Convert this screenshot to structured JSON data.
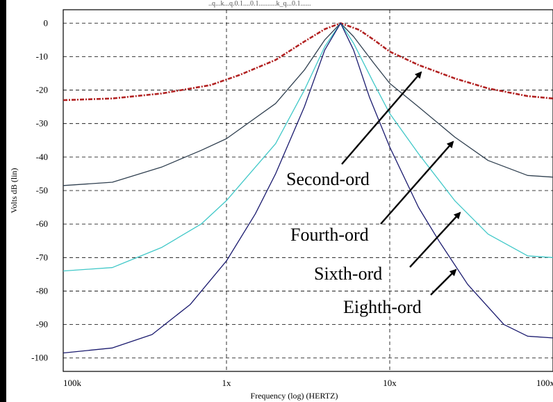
{
  "window": {
    "top_strip_text": "..q...k...q.0.1....0.1..........k_q...0.1......",
    "left_border_color": "#000000"
  },
  "chart_data": {
    "type": "line",
    "title": "",
    "xlabel": "Frequency (log) (HERTZ)",
    "ylabel": "Volts dB (lin)",
    "x_scale": "log",
    "x_ticks": [
      {
        "value": 100000,
        "label": "100k"
      },
      {
        "value": 1000000,
        "label": "1x"
      },
      {
        "value": 10000000,
        "label": "10x"
      },
      {
        "value": 100000000,
        "label": "100x"
      }
    ],
    "xlim": [
      100000,
      100000000
    ],
    "y_ticks": [
      0,
      -10,
      -20,
      -30,
      -40,
      -50,
      -60,
      -70,
      -80,
      -90,
      -100
    ],
    "ylim": [
      -104,
      4
    ],
    "grid": true,
    "grid_style": "dashed",
    "series": [
      {
        "name": "Second-ord",
        "color": "#b22222",
        "style": "dashdot",
        "points": [
          [
            100000,
            -23
          ],
          [
            200000,
            -22.5
          ],
          [
            400000,
            -21
          ],
          [
            800000,
            -18.5
          ],
          [
            1200000,
            -15.5
          ],
          [
            2000000,
            -11
          ],
          [
            3000000,
            -5.5
          ],
          [
            4000000,
            -1.8
          ],
          [
            5000000,
            0
          ],
          [
            6500000,
            -2
          ],
          [
            8000000,
            -5
          ],
          [
            10000000,
            -8.5
          ],
          [
            15000000,
            -12.5
          ],
          [
            25000000,
            -16.5
          ],
          [
            40000000,
            -19.5
          ],
          [
            70000000,
            -21.8
          ],
          [
            100000000,
            -22.5
          ]
        ]
      },
      {
        "name": "Fourth-ord",
        "color": "#2f3f4f",
        "style": "solid",
        "points": [
          [
            100000,
            -48.5
          ],
          [
            200000,
            -47.5
          ],
          [
            400000,
            -43
          ],
          [
            700000,
            -38
          ],
          [
            1000000,
            -34.5
          ],
          [
            2000000,
            -24
          ],
          [
            3000000,
            -14
          ],
          [
            4000000,
            -5
          ],
          [
            5000000,
            0
          ],
          [
            6000000,
            -4
          ],
          [
            8000000,
            -12
          ],
          [
            10000000,
            -18
          ],
          [
            15000000,
            -25
          ],
          [
            25000000,
            -34
          ],
          [
            40000000,
            -41
          ],
          [
            70000000,
            -45.5
          ],
          [
            100000000,
            -46
          ]
        ]
      },
      {
        "name": "Sixth-ord",
        "color": "#40c8c8",
        "style": "solid",
        "points": [
          [
            100000,
            -74
          ],
          [
            200000,
            -73
          ],
          [
            400000,
            -67
          ],
          [
            700000,
            -60
          ],
          [
            1000000,
            -53
          ],
          [
            2000000,
            -36
          ],
          [
            3000000,
            -20
          ],
          [
            4000000,
            -7
          ],
          [
            5000000,
            0
          ],
          [
            6000000,
            -6
          ],
          [
            8000000,
            -18
          ],
          [
            10000000,
            -27
          ],
          [
            15000000,
            -39
          ],
          [
            25000000,
            -53
          ],
          [
            40000000,
            -63
          ],
          [
            70000000,
            -69.5
          ],
          [
            100000000,
            -70
          ]
        ]
      },
      {
        "name": "Eighth-ord",
        "color": "#1a1a6e",
        "style": "solid",
        "points": [
          [
            100000,
            -98.5
          ],
          [
            200000,
            -97
          ],
          [
            350000,
            -93
          ],
          [
            600000,
            -84
          ],
          [
            1000000,
            -71
          ],
          [
            1500000,
            -57
          ],
          [
            2000000,
            -45
          ],
          [
            3000000,
            -25
          ],
          [
            4000000,
            -8
          ],
          [
            5000000,
            0
          ],
          [
            6000000,
            -8
          ],
          [
            7500000,
            -22
          ],
          [
            10000000,
            -37
          ],
          [
            15000000,
            -55
          ],
          [
            20000000,
            -65
          ],
          [
            30000000,
            -78
          ],
          [
            50000000,
            -90
          ],
          [
            70000000,
            -93.5
          ],
          [
            100000000,
            -94
          ]
        ]
      }
    ],
    "annotations": [
      {
        "text": "Second-ord",
        "target": "Second-ord"
      },
      {
        "text": "Fourth-ord",
        "target": "Fourth-ord"
      },
      {
        "text": "Sixth-ord",
        "target": "Sixth-ord"
      },
      {
        "text": "Eighth-ord",
        "target": "Eighth-ord"
      }
    ]
  }
}
